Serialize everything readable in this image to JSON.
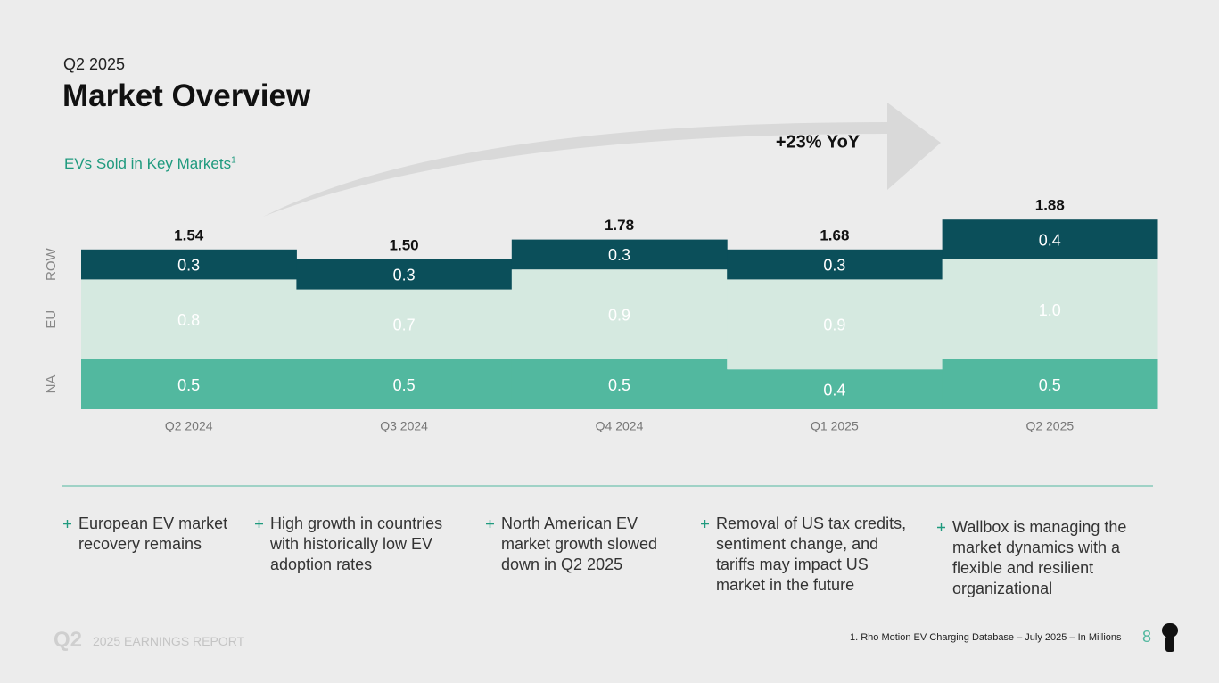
{
  "header": {
    "eyebrow": "Q2 2025",
    "title": "Market Overview"
  },
  "chart_data": {
    "type": "stacked_bar",
    "title": "EVs Sold in Key Markets",
    "title_note": "1",
    "categories": [
      "Q2 2024",
      "Q3 2024",
      "Q4 2024",
      "Q1 2025",
      "Q2 2025"
    ],
    "series": [
      {
        "name": "NA",
        "color": "#52b89f",
        "values": [
          0.5,
          0.5,
          0.5,
          0.4,
          0.5
        ]
      },
      {
        "name": "EU",
        "color": "#d5e9e0",
        "values": [
          0.8,
          0.7,
          0.9,
          0.9,
          1.0
        ],
        "value_labels": [
          "0.8",
          "0.7",
          "0.9",
          "0.9",
          "1.0"
        ]
      },
      {
        "name": "ROW",
        "color": "#0b4f5a",
        "values": [
          0.3,
          0.3,
          0.3,
          0.3,
          0.4
        ]
      }
    ],
    "totals": {
      "values": [
        1.54,
        1.5,
        1.78,
        1.68,
        1.88
      ],
      "value_labels": [
        "1.54",
        "1.50",
        "1.78",
        "1.68",
        "1.88"
      ]
    },
    "annotation": "+23% YoY"
  },
  "bullets": [
    "European EV market recovery remains",
    "High growth in countries with historically low EV adoption rates",
    "North American EV market growth slowed down in Q2 2025",
    "Removal of US tax credits, sentiment change, and tariffs may impact US market in the future",
    "Wallbox is managing the market dynamics with a flexible and resilient organizational"
  ],
  "footer": {
    "mark": "Q2",
    "report": "2025 EARNINGS REPORT",
    "note": "1. Rho Motion EV Charging Database – July 2025 – In Millions",
    "page": "8"
  }
}
